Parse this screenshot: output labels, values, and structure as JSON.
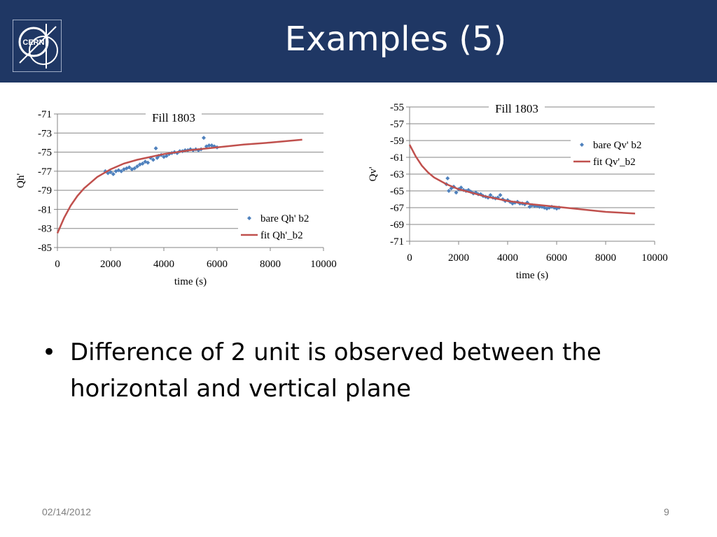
{
  "slide": {
    "title": "Examples (5)",
    "logo_text": "CERN",
    "bullet_symbol": "•",
    "bullet_text": "Difference of 2 unit is observed between the horizontal and vertical plane",
    "footer_date": "02/14/2012",
    "page_number": "9",
    "colors": {
      "header": "#1f3764",
      "data_points": "#4f81bd",
      "fit_line": "#c0504d"
    }
  },
  "chart_data": [
    {
      "type": "scatter",
      "title": "Fill 1803",
      "xlabel": "time (s)",
      "ylabel": "Qh'",
      "xlim": [
        0,
        10000
      ],
      "ylim": [
        -85,
        -71
      ],
      "xticks": [
        0,
        2000,
        4000,
        6000,
        8000,
        10000
      ],
      "yticks": [
        -71,
        -73,
        -75,
        -77,
        -79,
        -81,
        -83,
        -85
      ],
      "legend_position": "bottom-right",
      "series": [
        {
          "name": "bare Qh' b2",
          "kind": "points",
          "points": [
            [
              1800,
              -77.0
            ],
            [
              1900,
              -77.2
            ],
            [
              2000,
              -77.1
            ],
            [
              2100,
              -77.3
            ],
            [
              2200,
              -77.0
            ],
            [
              2300,
              -76.9
            ],
            [
              2400,
              -77.0
            ],
            [
              2500,
              -76.8
            ],
            [
              2600,
              -76.7
            ],
            [
              2700,
              -76.6
            ],
            [
              2800,
              -76.8
            ],
            [
              2900,
              -76.7
            ],
            [
              3000,
              -76.5
            ],
            [
              3100,
              -76.3
            ],
            [
              3200,
              -76.2
            ],
            [
              3300,
              -76.0
            ],
            [
              3400,
              -76.1
            ],
            [
              3500,
              -75.6
            ],
            [
              3600,
              -75.8
            ],
            [
              3700,
              -74.6
            ],
            [
              3750,
              -75.6
            ],
            [
              3800,
              -75.4
            ],
            [
              3900,
              -75.3
            ],
            [
              4000,
              -75.5
            ],
            [
              4100,
              -75.4
            ],
            [
              4200,
              -75.2
            ],
            [
              4300,
              -75.1
            ],
            [
              4400,
              -75.0
            ],
            [
              4500,
              -75.1
            ],
            [
              4600,
              -74.9
            ],
            [
              4700,
              -74.9
            ],
            [
              4800,
              -74.8
            ],
            [
              4900,
              -74.8
            ],
            [
              5000,
              -74.7
            ],
            [
              5100,
              -74.8
            ],
            [
              5200,
              -74.7
            ],
            [
              5300,
              -74.8
            ],
            [
              5400,
              -74.7
            ],
            [
              5500,
              -73.5
            ],
            [
              5600,
              -74.4
            ],
            [
              5700,
              -74.3
            ],
            [
              5800,
              -74.3
            ],
            [
              5900,
              -74.4
            ],
            [
              6000,
              -74.5
            ]
          ]
        },
        {
          "name": "fit Qh'_b2",
          "kind": "line",
          "points": [
            [
              0,
              -83.5
            ],
            [
              250,
              -81.9
            ],
            [
              500,
              -80.6
            ],
            [
              750,
              -79.6
            ],
            [
              1000,
              -78.8
            ],
            [
              1500,
              -77.6
            ],
            [
              2000,
              -76.8
            ],
            [
              2500,
              -76.2
            ],
            [
              3000,
              -75.8
            ],
            [
              4000,
              -75.2
            ],
            [
              5000,
              -74.8
            ],
            [
              6000,
              -74.5
            ],
            [
              7000,
              -74.2
            ],
            [
              8000,
              -74.0
            ],
            [
              9200,
              -73.7
            ]
          ]
        }
      ]
    },
    {
      "type": "scatter",
      "title": "Fill 1803",
      "xlabel": "time (s)",
      "ylabel": "Qv'",
      "xlim": [
        0,
        10000
      ],
      "ylim": [
        -71,
        -55
      ],
      "xticks": [
        0,
        2000,
        4000,
        6000,
        8000,
        10000
      ],
      "yticks": [
        -55,
        -57,
        -59,
        -61,
        -63,
        -65,
        -67,
        -69,
        -71
      ],
      "legend_position": "top-right",
      "series": [
        {
          "name": "bare Qv' b2",
          "kind": "points",
          "points": [
            [
              1500,
              -64.2
            ],
            [
              1550,
              -63.5
            ],
            [
              1600,
              -65.0
            ],
            [
              1700,
              -64.7
            ],
            [
              1800,
              -64.5
            ],
            [
              1900,
              -65.2
            ],
            [
              2000,
              -64.8
            ],
            [
              2100,
              -64.6
            ],
            [
              2200,
              -64.9
            ],
            [
              2300,
              -65.0
            ],
            [
              2400,
              -64.9
            ],
            [
              2500,
              -65.1
            ],
            [
              2600,
              -65.3
            ],
            [
              2700,
              -65.2
            ],
            [
              2800,
              -65.4
            ],
            [
              2900,
              -65.4
            ],
            [
              3000,
              -65.6
            ],
            [
              3100,
              -65.7
            ],
            [
              3200,
              -65.8
            ],
            [
              3300,
              -65.5
            ],
            [
              3400,
              -65.8
            ],
            [
              3500,
              -65.9
            ],
            [
              3600,
              -65.8
            ],
            [
              3700,
              -65.5
            ],
            [
              3800,
              -66.0
            ],
            [
              3900,
              -66.2
            ],
            [
              4000,
              -66.1
            ],
            [
              4100,
              -66.3
            ],
            [
              4200,
              -66.5
            ],
            [
              4300,
              -66.4
            ],
            [
              4400,
              -66.3
            ],
            [
              4500,
              -66.5
            ],
            [
              4600,
              -66.5
            ],
            [
              4700,
              -66.6
            ],
            [
              4800,
              -66.4
            ],
            [
              4900,
              -66.9
            ],
            [
              5000,
              -66.7
            ],
            [
              5100,
              -66.8
            ],
            [
              5200,
              -66.8
            ],
            [
              5300,
              -66.9
            ],
            [
              5400,
              -66.9
            ],
            [
              5500,
              -67.0
            ],
            [
              5600,
              -67.1
            ],
            [
              5700,
              -67.0
            ],
            [
              5800,
              -66.9
            ],
            [
              5900,
              -67.0
            ],
            [
              6000,
              -67.1
            ],
            [
              6100,
              -67.0
            ]
          ]
        },
        {
          "name": "fit Qv'_b2",
          "kind": "line",
          "points": [
            [
              0,
              -59.5
            ],
            [
              250,
              -60.9
            ],
            [
              500,
              -62.0
            ],
            [
              750,
              -62.8
            ],
            [
              1000,
              -63.4
            ],
            [
              1500,
              -64.2
            ],
            [
              2000,
              -64.8
            ],
            [
              3000,
              -65.6
            ],
            [
              4000,
              -66.2
            ],
            [
              5000,
              -66.6
            ],
            [
              6000,
              -66.9
            ],
            [
              7000,
              -67.2
            ],
            [
              8000,
              -67.5
            ],
            [
              9200,
              -67.7
            ]
          ]
        }
      ]
    }
  ]
}
